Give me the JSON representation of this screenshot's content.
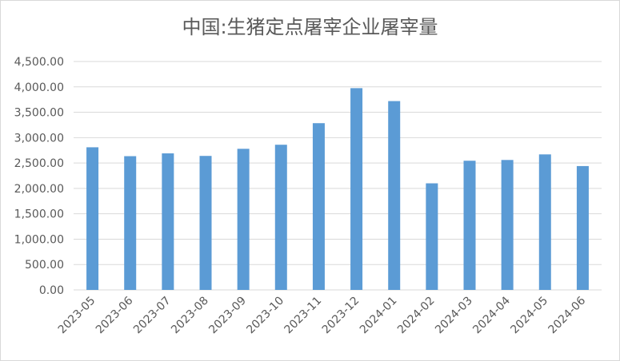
{
  "chart_data": {
    "type": "bar",
    "title": "中国:生猪定点屠宰企业屠宰量",
    "categories": [
      "2023-05",
      "2023-06",
      "2023-07",
      "2023-08",
      "2023-09",
      "2023-10",
      "2023-11",
      "2023-12",
      "2024-01",
      "2024-02",
      "2024-03",
      "2024-04",
      "2024-05",
      "2024-06"
    ],
    "series": [
      {
        "values": [
          2810,
          2635,
          2690,
          2640,
          2780,
          2860,
          3285,
          3975,
          3720,
          2100,
          2545,
          2560,
          2670,
          2440
        ]
      }
    ],
    "y_ticks": [
      "0.00",
      "500.00",
      "1,000.00",
      "1,500.00",
      "2,000.00",
      "2,500.00",
      "3,000.00",
      "3,500.00",
      "4,000.00",
      "4,500.00"
    ],
    "ylim": [
      0,
      4500
    ],
    "grid": true,
    "colors": {
      "bar": "#5b9bd5",
      "grid": "#d9d9d9",
      "text": "#595959"
    }
  }
}
